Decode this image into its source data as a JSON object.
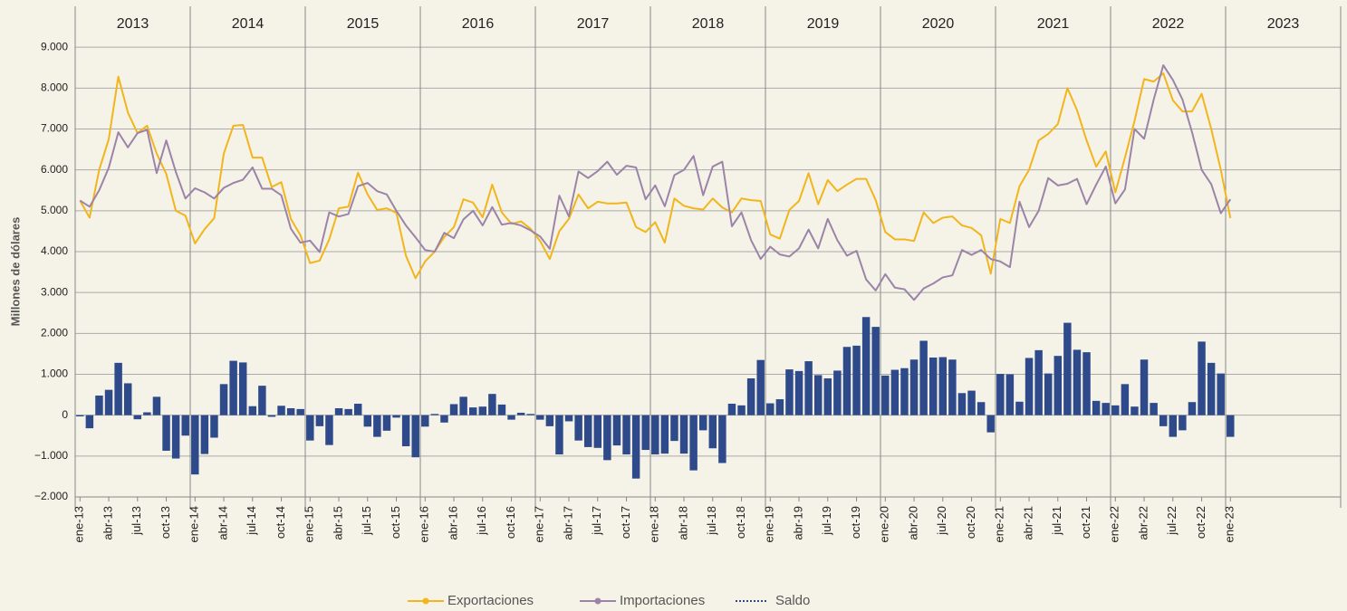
{
  "chart_data": {
    "type": "bar",
    "y_label": "Millones de dólares",
    "years": [
      "2013",
      "2014",
      "2015",
      "2016",
      "2017",
      "2018",
      "2019",
      "2020",
      "2021",
      "2022",
      "2023"
    ],
    "categories": [
      "ene-13",
      null,
      null,
      "abr-13",
      null,
      null,
      "jul-13",
      null,
      null,
      "oct-13",
      null,
      null,
      "ene-14",
      null,
      null,
      "abr-14",
      null,
      null,
      "jul-14",
      null,
      null,
      "oct-14",
      null,
      null,
      "ene-15",
      null,
      null,
      "abr-15",
      null,
      null,
      "jul-15",
      null,
      null,
      "oct-15",
      null,
      null,
      "ene-16",
      null,
      null,
      "abr-16",
      null,
      null,
      "jul-16",
      null,
      null,
      "oct-16",
      null,
      null,
      "ene-17",
      null,
      null,
      "abr-17",
      null,
      null,
      "jul-17",
      null,
      null,
      "oct-17",
      null,
      null,
      "ene-18",
      null,
      null,
      "abr-18",
      null,
      null,
      "jul-18",
      null,
      null,
      "oct-18",
      null,
      null,
      "ene-19",
      null,
      null,
      "abr-19",
      null,
      null,
      "jul-19",
      null,
      null,
      "oct-19",
      null,
      null,
      "ene-20",
      null,
      null,
      "abr-20",
      null,
      null,
      "jul-20",
      null,
      null,
      "oct-20",
      null,
      null,
      "ene-21",
      null,
      null,
      "abr-21",
      null,
      null,
      "jul-21",
      null,
      null,
      "oct-21",
      null,
      null,
      "ene-22",
      null,
      null,
      "abr-22",
      null,
      null,
      "jul-22",
      null,
      null,
      "oct-22",
      null,
      null,
      "ene-23"
    ],
    "series": [
      {
        "name": "Exportaciones",
        "type": "line",
        "color": "#f2b51c",
        "values": [
          5250,
          4830,
          6000,
          6750,
          8280,
          7400,
          6900,
          7080,
          6400,
          5900,
          5000,
          4880,
          4200,
          4550,
          4820,
          6400,
          7080,
          7100,
          6300,
          6300,
          5580,
          5700,
          4800,
          4400,
          3720,
          3780,
          4300,
          5060,
          5100,
          5930,
          5400,
          5020,
          5060,
          4950,
          3900,
          3350,
          3760,
          4000,
          4360,
          4600,
          5280,
          5200,
          4840,
          5640,
          4960,
          4680,
          4740,
          4560,
          4260,
          3820,
          4500,
          4800,
          5400,
          5060,
          5220,
          5180,
          5180,
          5200,
          4600,
          4480,
          4720,
          4220,
          5300,
          5120,
          5060,
          5030,
          5300,
          5080,
          4960,
          5300,
          5260,
          5240,
          4420,
          4320,
          5020,
          5240,
          5920,
          5160,
          5750,
          5480,
          5640,
          5780,
          5780,
          5260,
          4480,
          4300,
          4300,
          4260,
          4960,
          4700,
          4830,
          4860,
          4640,
          4580,
          4400,
          3460,
          4800,
          4700,
          5600,
          6000,
          6720,
          6880,
          7120,
          8000,
          7460,
          6720,
          6080,
          6450,
          5450,
          6300,
          7200,
          8220,
          8160,
          8360,
          7700,
          7430,
          7430,
          7860,
          7000,
          6000,
          4820
        ]
      },
      {
        "name": "Importaciones",
        "type": "line",
        "color": "#9b84a8",
        "values": [
          5250,
          5100,
          5500,
          6050,
          6920,
          6550,
          6900,
          6980,
          5920,
          6720,
          5950,
          5300,
          5550,
          5450,
          5300,
          5560,
          5680,
          5760,
          6060,
          5540,
          5540,
          5380,
          4560,
          4220,
          4270,
          3990,
          4960,
          4860,
          4920,
          5600,
          5680,
          5480,
          5400,
          5000,
          4640,
          4350,
          4040,
          4000,
          4460,
          4330,
          4790,
          5000,
          4640,
          5090,
          4660,
          4700,
          4640,
          4520,
          4370,
          4070,
          5370,
          4860,
          5960,
          5800,
          5970,
          6200,
          5880,
          6100,
          6060,
          5280,
          5620,
          5110,
          5870,
          6000,
          6340,
          5380,
          6080,
          6200,
          4620,
          4960,
          4280,
          3820,
          4120,
          3930,
          3880,
          4080,
          4540,
          4080,
          4800,
          4280,
          3900,
          4020,
          3320,
          3050,
          3450,
          3120,
          3080,
          2820,
          3100,
          3220,
          3370,
          3420,
          4040,
          3920,
          4040,
          3820,
          3760,
          3620,
          5220,
          4600,
          5000,
          5800,
          5620,
          5660,
          5780,
          5160,
          5640,
          6080,
          5180,
          5520,
          7000,
          6760,
          7720,
          8560,
          8200,
          7720,
          6920,
          6000,
          5650,
          4940,
          5280
        ]
      },
      {
        "name": "Saldo",
        "type": "bar",
        "color": "#2e4a8b",
        "values": [
          -30,
          -320,
          480,
          620,
          1280,
          780,
          -100,
          70,
          450,
          -870,
          -1060,
          -500,
          -1450,
          -950,
          -550,
          760,
          1330,
          1290,
          220,
          720,
          -40,
          230,
          170,
          150,
          -620,
          -270,
          -730,
          170,
          150,
          280,
          -280,
          -530,
          -380,
          -60,
          -760,
          -1030,
          -280,
          30,
          -180,
          270,
          450,
          190,
          210,
          520,
          260,
          -110,
          60,
          30,
          -110,
          -270,
          -960,
          -150,
          -620,
          -780,
          -800,
          -1100,
          -740,
          -960,
          -1550,
          -850,
          -960,
          -940,
          -630,
          -940,
          -1350,
          -370,
          -810,
          -1170,
          280,
          240,
          900,
          1350,
          290,
          390,
          1120,
          1080,
          1320,
          980,
          900,
          1090,
          1670,
          1700,
          2400,
          2160,
          970,
          1110,
          1150,
          1360,
          1820,
          1410,
          1420,
          1360,
          540,
          600,
          320,
          -420,
          1010,
          1000,
          330,
          1400,
          1590,
          1020,
          1450,
          2260,
          1600,
          1540,
          350,
          300,
          240,
          760,
          210,
          1360,
          300,
          -270,
          -530,
          -370,
          320,
          1800,
          1280,
          1020,
          -530
        ]
      }
    ],
    "ylim": [
      -2000,
      10000
    ],
    "yticks": [
      {
        "value": -2000,
        "label": "−2.000"
      },
      {
        "value": -1000,
        "label": "−1.000"
      },
      0,
      {
        "value": 1000,
        "label": "1.000"
      },
      {
        "value": 2000,
        "label": "2.000"
      },
      {
        "value": 3000,
        "label": "3.000"
      },
      {
        "value": 4000,
        "label": "4.000"
      },
      {
        "value": 5000,
        "label": "5.000"
      },
      {
        "value": 6000,
        "label": "6.000"
      },
      {
        "value": 7000,
        "label": "7.000"
      },
      {
        "value": 8000,
        "label": "8.000"
      },
      {
        "value": 9000,
        "label": "9.000"
      }
    ],
    "grid": true,
    "legend": "bottom"
  }
}
